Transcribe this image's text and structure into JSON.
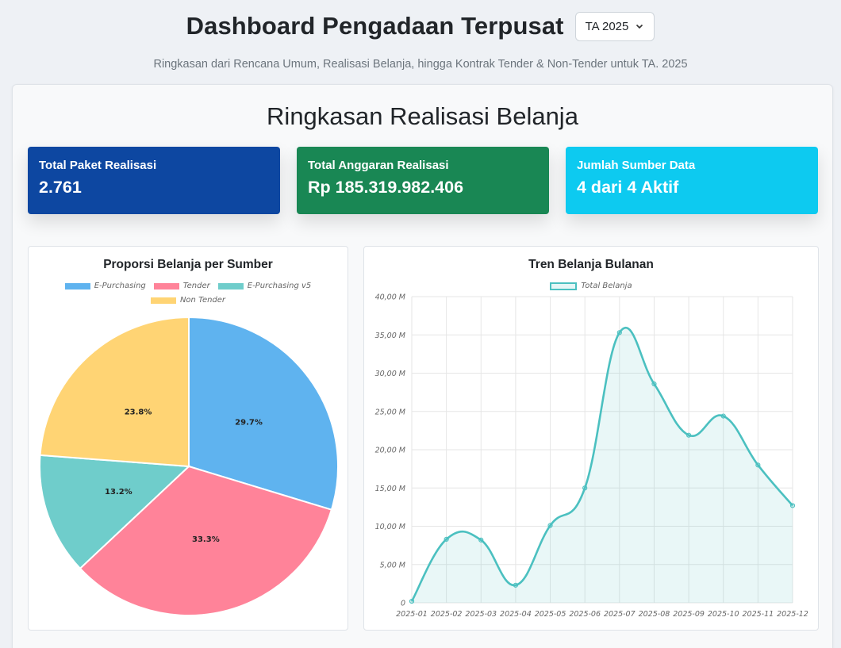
{
  "header": {
    "title": "Dashboard Pengadaan Terpusat",
    "year_select": "TA 2025",
    "subtitle": "Ringkasan dari Rencana Umum, Realisasi Belanja, hingga Kontrak Tender & Non-Tender untuk TA. 2025"
  },
  "section": {
    "title": "Ringkasan Realisasi Belanja"
  },
  "stats": [
    {
      "label": "Total Paket Realisasi",
      "value": "2.761",
      "color": "#0d47a1"
    },
    {
      "label": "Total Anggaran Realisasi",
      "value": "Rp 185.319.982.406",
      "color": "#198754"
    },
    {
      "label": "Jumlah Sumber Data",
      "value": "4 dari 4 Aktif",
      "color": "#0dcaf0"
    }
  ],
  "pie_card": {
    "title": "Proporsi Belanja per Sumber"
  },
  "line_card": {
    "title": "Tren Belanja Bulanan"
  },
  "chart_data": [
    {
      "type": "pie",
      "title": "Proporsi Belanja per Sumber",
      "legend_position": "top",
      "categories": [
        "E-Purchasing",
        "Tender",
        "E-Purchasing v5",
        "Non Tender"
      ],
      "values": [
        29.7,
        33.3,
        13.2,
        23.8
      ],
      "labels": [
        "29.7%",
        "33.3%",
        "13.2%",
        "23.8%"
      ],
      "colors": [
        "#5fb3ef",
        "#ff8399",
        "#6fcdcb",
        "#ffd474"
      ]
    },
    {
      "type": "area",
      "title": "Tren Belanja Bulanan",
      "legend_position": "top",
      "x": [
        "2025-01",
        "2025-02",
        "2025-03",
        "2025-04",
        "2025-05",
        "2025-06",
        "2025-07",
        "2025-08",
        "2025-09",
        "2025-10",
        "2025-11",
        "2025-12"
      ],
      "series": [
        {
          "name": "Total Belanja",
          "values": [
            0.2,
            8.3,
            8.2,
            2.3,
            10.1,
            15.0,
            35.3,
            28.6,
            21.9,
            24.4,
            18.0,
            12.7
          ],
          "color": "#4bc0c0"
        }
      ],
      "ylim": [
        0,
        40
      ],
      "y_ticks": [
        "0",
        "5,00 M",
        "10,00 M",
        "15,00 M",
        "20,00 M",
        "25,00 M",
        "30,00 M",
        "35,00 M",
        "40,00 M"
      ],
      "grid": true
    }
  ]
}
